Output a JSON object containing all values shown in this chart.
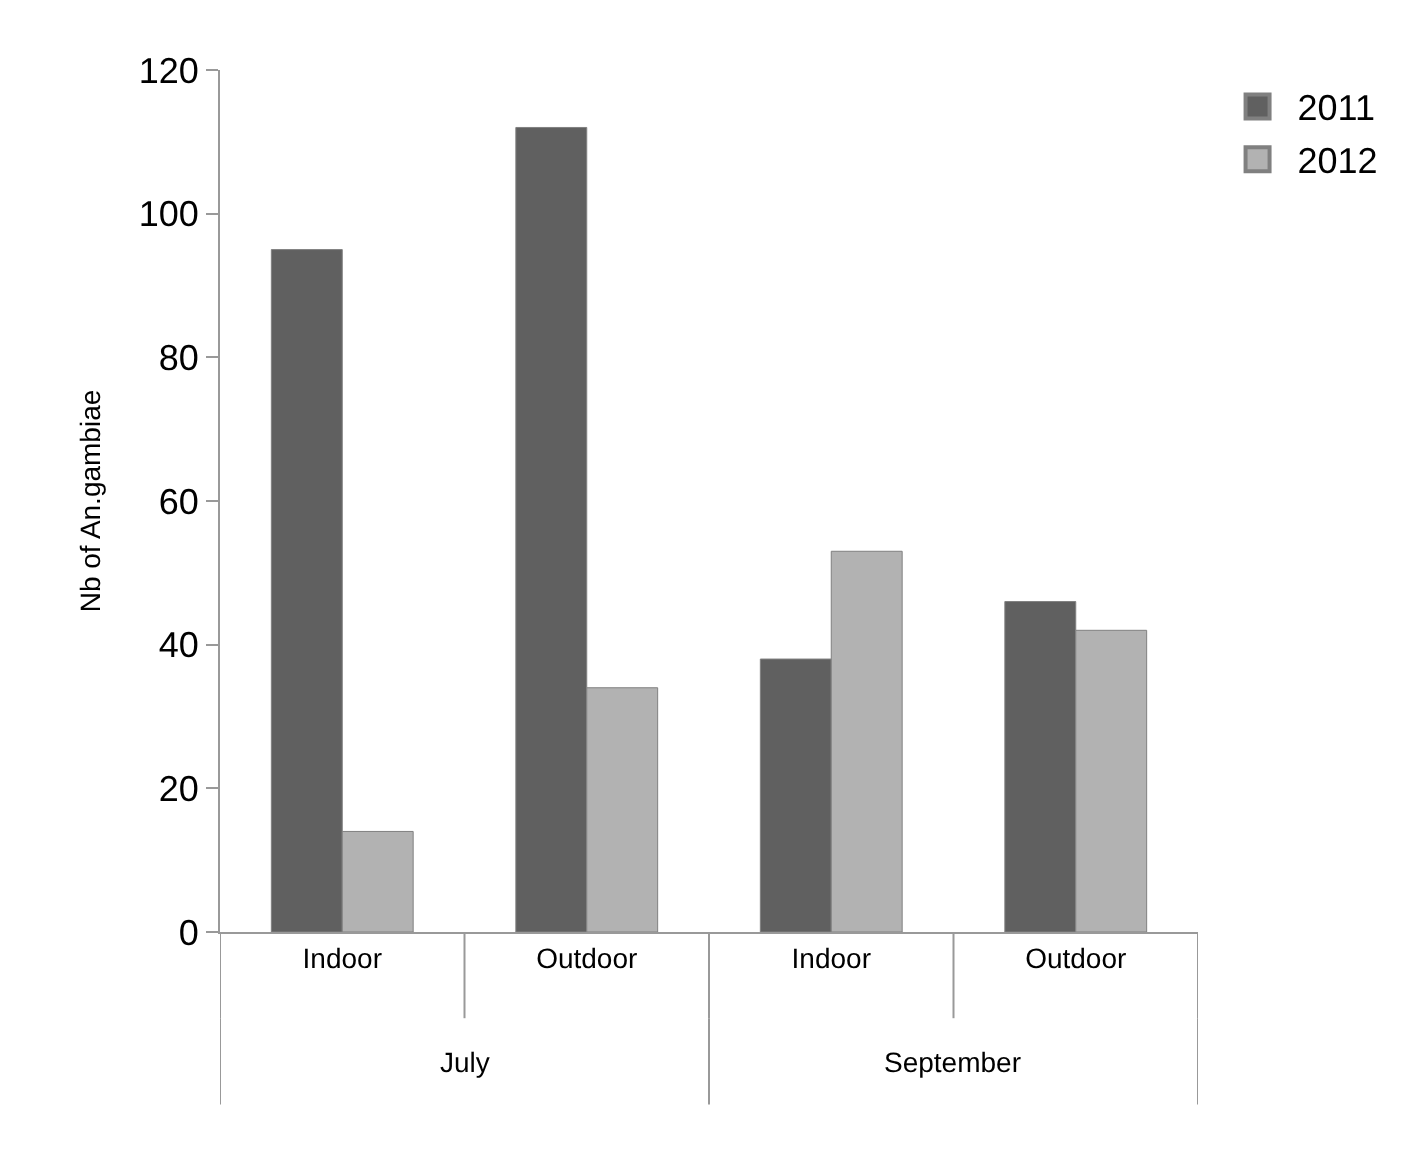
{
  "chart_data": {
    "type": "bar",
    "ylabel": "Nb of An.gambiae",
    "categories": [
      "Indoor",
      "Outdoor",
      "Indoor",
      "Outdoor"
    ],
    "series": [
      {
        "name": "2011",
        "color": "#606060",
        "values": [
          95,
          112,
          38,
          46
        ]
      },
      {
        "name": "2012",
        "color": "#b2b2b2",
        "values": [
          14,
          34,
          53,
          42
        ]
      }
    ],
    "annotations": [
      "July",
      "September"
    ],
    "ylim": [
      0,
      120
    ],
    "yticks": [
      0,
      20,
      40,
      60,
      80,
      100,
      120
    ],
    "grid": false,
    "legend": "top right"
  }
}
